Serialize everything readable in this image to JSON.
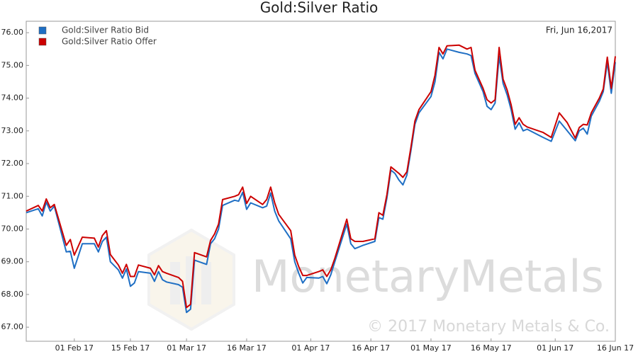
{
  "chart_data": {
    "type": "line",
    "title": "Gold:Silver Ratio",
    "date_label": "Fri, Jun 16,2017",
    "watermark": "MonetaryMetals",
    "copyright": "© 2017 Monetary Metals & Co.",
    "x": [
      "2017-01-20",
      "2017-01-23",
      "2017-01-24",
      "2017-01-25",
      "2017-01-26",
      "2017-01-27",
      "2017-01-30",
      "2017-01-31",
      "2017-02-01",
      "2017-02-03",
      "2017-02-06",
      "2017-02-07",
      "2017-02-08",
      "2017-02-09",
      "2017-02-10",
      "2017-02-12",
      "2017-02-13",
      "2017-02-14",
      "2017-02-15",
      "2017-02-16",
      "2017-02-17",
      "2017-02-20",
      "2017-02-21",
      "2017-02-22",
      "2017-02-23",
      "2017-02-24",
      "2017-02-27",
      "2017-02-28",
      "2017-03-01",
      "2017-03-02",
      "2017-03-03",
      "2017-03-06",
      "2017-03-07",
      "2017-03-08",
      "2017-03-09",
      "2017-03-10",
      "2017-03-13",
      "2017-03-14",
      "2017-03-15",
      "2017-03-16",
      "2017-03-17",
      "2017-03-20",
      "2017-03-21",
      "2017-03-22",
      "2017-03-23",
      "2017-03-24",
      "2017-03-27",
      "2017-03-28",
      "2017-03-29",
      "2017-03-30",
      "2017-03-31",
      "2017-04-03",
      "2017-04-04",
      "2017-04-05",
      "2017-04-06",
      "2017-04-07",
      "2017-04-10",
      "2017-04-11",
      "2017-04-12",
      "2017-04-14",
      "2017-04-17",
      "2017-04-18",
      "2017-04-19",
      "2017-04-20",
      "2017-04-21",
      "2017-04-22",
      "2017-04-23",
      "2017-04-24",
      "2017-04-25",
      "2017-04-26",
      "2017-04-27",
      "2017-04-28",
      "2017-05-01",
      "2017-05-02",
      "2017-05-03",
      "2017-05-04",
      "2017-05-05",
      "2017-05-08",
      "2017-05-10",
      "2017-05-11",
      "2017-05-12",
      "2017-05-14",
      "2017-05-15",
      "2017-05-16",
      "2017-05-17",
      "2017-05-18",
      "2017-05-19",
      "2017-05-20",
      "2017-05-21",
      "2017-05-22",
      "2017-05-23",
      "2017-05-24",
      "2017-05-25",
      "2017-05-29",
      "2017-05-31",
      "2017-06-02",
      "2017-06-04",
      "2017-06-06",
      "2017-06-07",
      "2017-06-08",
      "2017-06-09",
      "2017-06-10",
      "2017-06-12",
      "2017-06-13",
      "2017-06-14",
      "2017-06-15",
      "2017-06-16"
    ],
    "series": [
      {
        "name": "Gold:Silver Ratio Bid",
        "color": "#1f6fc4",
        "values": [
          70.5,
          70.62,
          70.4,
          70.82,
          70.55,
          70.7,
          69.3,
          69.32,
          68.8,
          69.55,
          69.55,
          69.3,
          69.62,
          69.75,
          69.0,
          68.75,
          68.5,
          68.78,
          68.25,
          68.35,
          68.7,
          68.65,
          68.4,
          68.7,
          68.45,
          68.38,
          68.3,
          68.22,
          67.45,
          67.55,
          69.05,
          68.92,
          69.55,
          69.7,
          70.0,
          70.72,
          70.88,
          70.85,
          71.12,
          70.6,
          70.8,
          70.65,
          70.7,
          71.1,
          70.55,
          70.25,
          69.7,
          69.0,
          68.65,
          68.35,
          68.52,
          68.5,
          68.55,
          68.33,
          68.6,
          69.0,
          70.15,
          69.55,
          69.4,
          69.5,
          69.62,
          70.35,
          70.3,
          70.95,
          71.8,
          71.7,
          71.5,
          71.35,
          71.65,
          72.4,
          73.2,
          73.55,
          74.05,
          74.5,
          75.4,
          75.2,
          75.5,
          75.4,
          75.35,
          75.3,
          74.75,
          74.2,
          73.75,
          73.65,
          73.85,
          75.28,
          74.45,
          74.1,
          73.65,
          73.05,
          73.25,
          73.0,
          73.05,
          72.8,
          72.68,
          73.3,
          73.0,
          72.7,
          73.0,
          73.08,
          72.9,
          73.45,
          73.9,
          74.2,
          75.1,
          74.15,
          75.1
        ]
      },
      {
        "name": "Gold:Silver Ratio Offer",
        "color": "#cc0000",
        "values": [
          70.55,
          70.72,
          70.55,
          70.92,
          70.65,
          70.75,
          69.5,
          69.68,
          69.2,
          69.75,
          69.72,
          69.45,
          69.8,
          69.95,
          69.22,
          68.9,
          68.65,
          68.92,
          68.55,
          68.55,
          68.9,
          68.8,
          68.6,
          68.88,
          68.7,
          68.65,
          68.52,
          68.4,
          67.6,
          67.7,
          69.28,
          69.15,
          69.65,
          69.85,
          70.15,
          70.9,
          71.0,
          71.05,
          71.28,
          70.78,
          71.0,
          70.75,
          70.9,
          71.28,
          70.8,
          70.45,
          69.95,
          69.2,
          68.85,
          68.58,
          68.58,
          68.7,
          68.75,
          68.55,
          68.75,
          69.1,
          70.3,
          69.7,
          69.62,
          69.62,
          69.7,
          70.5,
          70.42,
          71.05,
          71.9,
          71.8,
          71.7,
          71.58,
          71.75,
          72.5,
          73.3,
          73.65,
          74.2,
          74.7,
          75.55,
          75.35,
          75.6,
          75.62,
          75.5,
          75.55,
          74.85,
          74.3,
          73.95,
          73.85,
          73.95,
          75.55,
          74.58,
          74.25,
          73.8,
          73.2,
          73.4,
          73.2,
          73.12,
          72.95,
          72.8,
          73.55,
          73.25,
          72.78,
          73.1,
          73.2,
          73.18,
          73.55,
          74.0,
          74.28,
          75.25,
          74.3,
          75.28
        ]
      }
    ],
    "xlim": [
      "2017-01-20",
      "2017-06-16"
    ],
    "xticks": [
      {
        "value": "2017-02-01",
        "label": "01 Feb 17"
      },
      {
        "value": "2017-02-15",
        "label": "15 Feb 17"
      },
      {
        "value": "2017-03-01",
        "label": "01 Mar 17"
      },
      {
        "value": "2017-03-16",
        "label": "16 Mar 17"
      },
      {
        "value": "2017-04-01",
        "label": "01 Apr 17"
      },
      {
        "value": "2017-04-16",
        "label": "16 Apr 17"
      },
      {
        "value": "2017-05-01",
        "label": "01 May 17"
      },
      {
        "value": "2017-05-16",
        "label": "16 May 17"
      },
      {
        "value": "2017-06-01",
        "label": "01 Jun 17"
      },
      {
        "value": "2017-06-16",
        "label": "16 Jun 17"
      }
    ],
    "ylim": [
      66.57,
      76.35
    ],
    "yticks": [
      {
        "value": 67,
        "label": "67.00"
      },
      {
        "value": 68,
        "label": "68.00"
      },
      {
        "value": 69,
        "label": "69.00"
      },
      {
        "value": 70,
        "label": "70.00"
      },
      {
        "value": 71,
        "label": "71.00"
      },
      {
        "value": 72,
        "label": "72.00"
      },
      {
        "value": 73,
        "label": "73.00"
      },
      {
        "value": 74,
        "label": "74.00"
      },
      {
        "value": 75,
        "label": "75.00"
      },
      {
        "value": 76,
        "label": "76.00"
      }
    ],
    "legend": "top-left"
  }
}
